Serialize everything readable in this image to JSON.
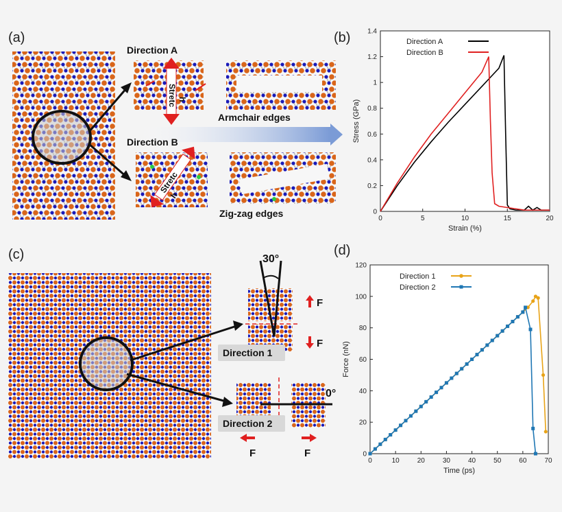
{
  "panels": {
    "a": {
      "label": "(a)",
      "direction_a": "Direction A",
      "direction_b": "Direction B",
      "stretch_parts": [
        "Stretc",
        "h"
      ],
      "armchair": "Armchair edges",
      "zigzag": "Zig-zag edges"
    },
    "b": {
      "label": "(b)"
    },
    "c": {
      "label": "(c)",
      "angle_30": "30°",
      "angle_0": "0°",
      "force": "F",
      "direction_1": "Direction 1",
      "direction_2": "Direction 2"
    },
    "d": {
      "label": "(d)"
    }
  },
  "colors": {
    "atom_orange": "#d9651a",
    "atom_blue": "#1a1ab8",
    "red": "#e02020",
    "blue_curve": "#1f77b4",
    "orange_curve": "#e8a317"
  },
  "chart_data": [
    {
      "id": "b",
      "type": "line",
      "title": "",
      "xlabel": "Strain (%)",
      "ylabel": "Stress (GPa)",
      "xlim": [
        0,
        20
      ],
      "ylim": [
        0,
        1.4
      ],
      "xticks": [
        0,
        5,
        10,
        15,
        20
      ],
      "yticks": [
        0,
        0.2,
        0.4,
        0.6,
        0.8,
        1,
        1.2,
        1.4
      ],
      "ytick_labels": [
        "0",
        "0.2",
        "0.4",
        "0.6",
        "0.8",
        "1",
        "1.2",
        "1.4"
      ],
      "legend": "top-left",
      "series": [
        {
          "name": "Direction A",
          "color": "#000000",
          "x": [
            0,
            2,
            4,
            6,
            8,
            10,
            12,
            13,
            14,
            14.6,
            14.8,
            15.0,
            15.3,
            16,
            17,
            17.5,
            18,
            18.5,
            19,
            20
          ],
          "y": [
            0,
            0.2,
            0.38,
            0.54,
            0.69,
            0.83,
            0.97,
            1.04,
            1.11,
            1.21,
            0.6,
            0.05,
            0.02,
            0.01,
            0.01,
            0.04,
            0.01,
            0.03,
            0.01,
            0.01
          ]
        },
        {
          "name": "Direction B",
          "color": "#e02020",
          "x": [
            0,
            2,
            4,
            6,
            8,
            10,
            11,
            12,
            12.8,
            13.0,
            13.2,
            13.5,
            14,
            15,
            16,
            17,
            18,
            19,
            20
          ],
          "y": [
            0,
            0.22,
            0.42,
            0.6,
            0.76,
            0.92,
            1.0,
            1.08,
            1.2,
            0.7,
            0.3,
            0.06,
            0.04,
            0.03,
            0.02,
            0.01,
            0.01,
            0.01,
            0.01
          ]
        }
      ]
    },
    {
      "id": "d",
      "type": "line",
      "title": "",
      "xlabel": "Time (ps)",
      "ylabel": "Force (nN)",
      "xlim": [
        0,
        70
      ],
      "ylim": [
        0,
        120
      ],
      "xticks": [
        0,
        10,
        20,
        30,
        40,
        50,
        60,
        70
      ],
      "yticks": [
        0,
        20,
        40,
        60,
        80,
        100,
        120
      ],
      "ytick_labels": [
        "0",
        "20",
        "40",
        "60",
        "80",
        "100",
        "120"
      ],
      "legend": "top-left",
      "series": [
        {
          "name": "Direction 1",
          "color": "#e8a317",
          "marker": "circle",
          "x": [
            0,
            2,
            4,
            6,
            8,
            10,
            12,
            14,
            16,
            18,
            20,
            22,
            24,
            26,
            28,
            30,
            32,
            34,
            36,
            38,
            40,
            42,
            44,
            46,
            48,
            50,
            52,
            54,
            56,
            58,
            60,
            62,
            64,
            65,
            66,
            68,
            69
          ],
          "y": [
            0,
            3,
            6,
            9,
            12,
            15,
            18,
            21,
            24,
            27,
            30,
            33,
            36,
            39,
            42,
            45,
            48,
            51,
            54,
            57,
            60,
            63,
            66,
            69,
            72,
            75,
            78,
            81,
            84,
            87,
            90,
            93,
            97,
            100,
            99,
            50,
            14
          ]
        },
        {
          "name": "Direction 2",
          "color": "#1f77b4",
          "marker": "square",
          "x": [
            0,
            2,
            4,
            6,
            8,
            10,
            12,
            14,
            16,
            18,
            20,
            22,
            24,
            26,
            28,
            30,
            32,
            34,
            36,
            38,
            40,
            42,
            44,
            46,
            48,
            50,
            52,
            54,
            56,
            58,
            60,
            61,
            63,
            64,
            65
          ],
          "y": [
            0,
            3,
            6,
            9,
            12,
            15,
            18,
            21,
            24,
            27,
            30,
            33,
            36,
            39,
            42,
            45,
            48,
            51,
            54,
            57,
            60,
            63,
            66,
            69,
            72,
            75,
            78,
            81,
            84,
            87,
            90,
            93,
            79,
            16,
            0
          ]
        }
      ]
    }
  ]
}
